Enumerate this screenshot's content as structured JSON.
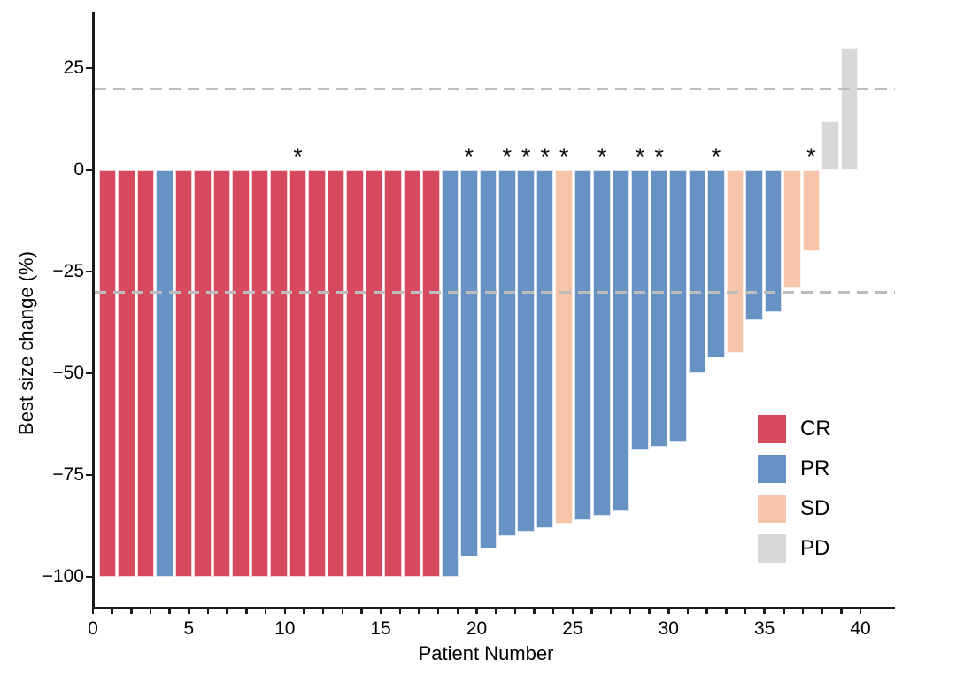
{
  "axes": {
    "x_title": "Patient Number",
    "y_title": "Best size change (%)"
  },
  "legend": {
    "items": [
      {
        "label": "CR",
        "color": "#D6495F"
      },
      {
        "label": "PR",
        "color": "#6793C4"
      },
      {
        "label": "SD",
        "color": "#F7C4A9"
      },
      {
        "label": "PD",
        "color": "#D8D8D8"
      }
    ]
  },
  "chart_data": {
    "type": "bar",
    "title": "",
    "xlabel": "Patient Number",
    "ylabel": "Best size change (%)",
    "xlim": [
      0,
      42
    ],
    "ylim": [
      -107,
      38
    ],
    "x_tick_labels": [
      0,
      5,
      10,
      15,
      20,
      25,
      30,
      35,
      40
    ],
    "x_minor_tick_step": 1,
    "y_tick_labels": [
      25,
      0,
      -25,
      -50,
      -75,
      -100
    ],
    "grid": false,
    "threshold_dashed_lines_pct": [
      20,
      -30
    ],
    "threshold_line_color": "#BDBDBD",
    "legend_position": "inside-bottom-right",
    "response_colors": {
      "CR": "#D6495F",
      "PR": "#6793C4",
      "SD": "#F7C4A9",
      "PD": "#D8D8D8"
    },
    "patients": [
      {
        "n": 1,
        "change_pct": -100,
        "response": "CR",
        "asterisk": false
      },
      {
        "n": 2,
        "change_pct": -100,
        "response": "CR",
        "asterisk": false
      },
      {
        "n": 3,
        "change_pct": -100,
        "response": "CR",
        "asterisk": false
      },
      {
        "n": 4,
        "change_pct": -100,
        "response": "PR",
        "asterisk": false
      },
      {
        "n": 5,
        "change_pct": -100,
        "response": "CR",
        "asterisk": false
      },
      {
        "n": 6,
        "change_pct": -100,
        "response": "CR",
        "asterisk": false
      },
      {
        "n": 7,
        "change_pct": -100,
        "response": "CR",
        "asterisk": false
      },
      {
        "n": 8,
        "change_pct": -100,
        "response": "CR",
        "asterisk": false
      },
      {
        "n": 9,
        "change_pct": -100,
        "response": "CR",
        "asterisk": false
      },
      {
        "n": 10,
        "change_pct": -100,
        "response": "CR",
        "asterisk": false
      },
      {
        "n": 11,
        "change_pct": -100,
        "response": "CR",
        "asterisk": true
      },
      {
        "n": 12,
        "change_pct": -100,
        "response": "CR",
        "asterisk": false
      },
      {
        "n": 13,
        "change_pct": -100,
        "response": "CR",
        "asterisk": false
      },
      {
        "n": 14,
        "change_pct": -100,
        "response": "CR",
        "asterisk": false
      },
      {
        "n": 15,
        "change_pct": -100,
        "response": "CR",
        "asterisk": false
      },
      {
        "n": 16,
        "change_pct": -100,
        "response": "CR",
        "asterisk": false
      },
      {
        "n": 17,
        "change_pct": -100,
        "response": "CR",
        "asterisk": false
      },
      {
        "n": 18,
        "change_pct": -100,
        "response": "CR",
        "asterisk": false
      },
      {
        "n": 19,
        "change_pct": -100,
        "response": "PR",
        "asterisk": false
      },
      {
        "n": 20,
        "change_pct": -95,
        "response": "PR",
        "asterisk": true
      },
      {
        "n": 21,
        "change_pct": -93,
        "response": "PR",
        "asterisk": false
      },
      {
        "n": 22,
        "change_pct": -90,
        "response": "PR",
        "asterisk": true
      },
      {
        "n": 23,
        "change_pct": -89,
        "response": "PR",
        "asterisk": true
      },
      {
        "n": 24,
        "change_pct": -88,
        "response": "PR",
        "asterisk": true
      },
      {
        "n": 25,
        "change_pct": -87,
        "response": "SD",
        "asterisk": true
      },
      {
        "n": 26,
        "change_pct": -86,
        "response": "PR",
        "asterisk": false
      },
      {
        "n": 27,
        "change_pct": -85,
        "response": "PR",
        "asterisk": true
      },
      {
        "n": 28,
        "change_pct": -84,
        "response": "PR",
        "asterisk": false
      },
      {
        "n": 29,
        "change_pct": -69,
        "response": "PR",
        "asterisk": true
      },
      {
        "n": 30,
        "change_pct": -68,
        "response": "PR",
        "asterisk": true
      },
      {
        "n": 31,
        "change_pct": -67,
        "response": "PR",
        "asterisk": false
      },
      {
        "n": 32,
        "change_pct": -50,
        "response": "PR",
        "asterisk": false
      },
      {
        "n": 33,
        "change_pct": -46,
        "response": "PR",
        "asterisk": true
      },
      {
        "n": 34,
        "change_pct": -45,
        "response": "SD",
        "asterisk": false
      },
      {
        "n": 35,
        "change_pct": -37,
        "response": "PR",
        "asterisk": false
      },
      {
        "n": 36,
        "change_pct": -35,
        "response": "PR",
        "asterisk": false
      },
      {
        "n": 37,
        "change_pct": -29,
        "response": "SD",
        "asterisk": false
      },
      {
        "n": 38,
        "change_pct": -20,
        "response": "SD",
        "asterisk": true
      },
      {
        "n": 39,
        "change_pct": 12,
        "response": "PD",
        "asterisk": false
      },
      {
        "n": 40,
        "change_pct": 30,
        "response": "PD",
        "asterisk": false
      }
    ]
  }
}
